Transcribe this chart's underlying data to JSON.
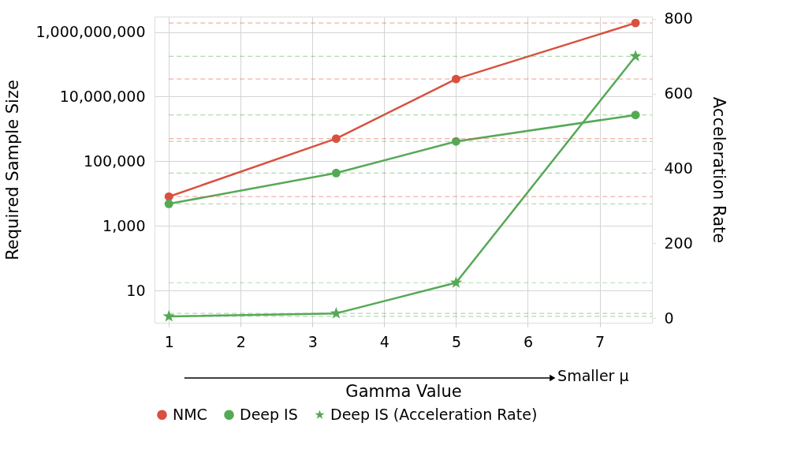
{
  "chart_data": {
    "type": "line",
    "xlabel": "Gamma Value",
    "ylabel": "Required Sample Size",
    "y2label": "Acceleration Rate",
    "log": "y",
    "grid": true,
    "legend": "bottom",
    "line_style": "solid",
    "xlim": [
      0.8,
      7.73
    ],
    "xticks": [
      1,
      2,
      3,
      4,
      5,
      6,
      7
    ],
    "ylim": [
      1,
      3000000000
    ],
    "yticks": [
      {
        "value": 10,
        "label": "10"
      },
      {
        "value": 1000,
        "label": "1,000"
      },
      {
        "value": 100000,
        "label": "100,000"
      },
      {
        "value": 10000000,
        "label": "10,000,000"
      },
      {
        "value": 1000000000,
        "label": "1,000,000,000"
      }
    ],
    "y2lim": [
      -12,
      806
    ],
    "y2ticks": [
      0,
      200,
      400,
      600,
      800
    ],
    "series": [
      {
        "name": "NMC",
        "color": "#d9503f",
        "marker": "circle",
        "x": [
          1,
          3.33,
          5,
          7.5
        ],
        "values": [
          8000,
          500000,
          35000000,
          1900000000
        ]
      },
      {
        "name": "Deep IS",
        "color": "#55a955",
        "marker": "circle",
        "x": [
          1,
          3.33,
          5,
          7.5
        ],
        "values": [
          4800,
          43000,
          410000,
          2700000
        ]
      },
      {
        "name": "Deep IS (Acceleration Rate)",
        "color": "#55a955",
        "marker": "star",
        "axis": "y2",
        "x": [
          1,
          3.33,
          5,
          7.5
        ],
        "values": [
          5,
          13,
          95,
          700
        ]
      }
    ],
    "ref_lines": [
      {
        "axis": "y",
        "value": 8000,
        "color": "#d9503f",
        "line_style": "dashed"
      },
      {
        "axis": "y",
        "value": 500000,
        "color": "#d9503f",
        "line_style": "dashed"
      },
      {
        "axis": "y",
        "value": 35000000,
        "color": "#d9503f",
        "line_style": "dashed"
      },
      {
        "axis": "y",
        "value": 1900000000,
        "color": "#d9503f",
        "line_style": "dashed"
      },
      {
        "axis": "y",
        "value": 4800,
        "color": "#55a955",
        "line_style": "dashed"
      },
      {
        "axis": "y",
        "value": 43000,
        "color": "#55a955",
        "line_style": "dashed"
      },
      {
        "axis": "y",
        "value": 410000,
        "color": "#55a955",
        "line_style": "dashed"
      },
      {
        "axis": "y",
        "value": 2700000,
        "color": "#55a955",
        "line_style": "dashed"
      },
      {
        "axis": "y2",
        "value": 5,
        "color": "#55a955",
        "line_style": "dashed"
      },
      {
        "axis": "y2",
        "value": 13,
        "color": "#55a955",
        "line_style": "dashed"
      },
      {
        "axis": "y2",
        "value": 95,
        "color": "#55a955",
        "line_style": "dashed"
      },
      {
        "axis": "y2",
        "value": 700,
        "color": "#55a955",
        "line_style": "dashed"
      }
    ],
    "annotations": [
      "Smaller μ"
    ]
  }
}
